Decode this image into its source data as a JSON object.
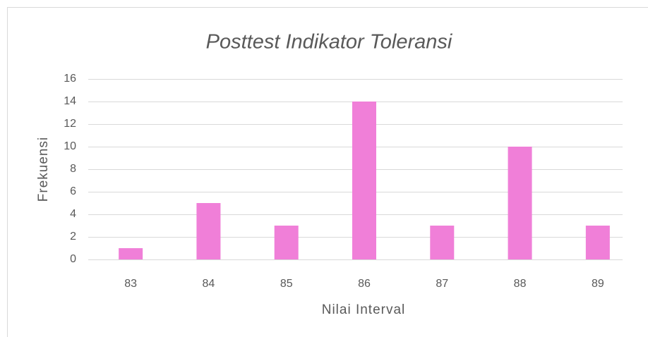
{
  "chart_data": {
    "type": "bar",
    "title": "Posttest Indikator Toleransi",
    "x_label": "Nilai Interval",
    "y_label": "Frekuensi",
    "categories": [
      "83",
      "84",
      "85",
      "86",
      "87",
      "88",
      "89"
    ],
    "values": [
      1,
      5,
      3,
      14,
      3,
      10,
      3
    ],
    "color": "#f07fd8",
    "ylim": [
      0,
      16
    ],
    "yticks": [
      0,
      2,
      4,
      6,
      8,
      10,
      12,
      14,
      16
    ],
    "grid": true
  }
}
